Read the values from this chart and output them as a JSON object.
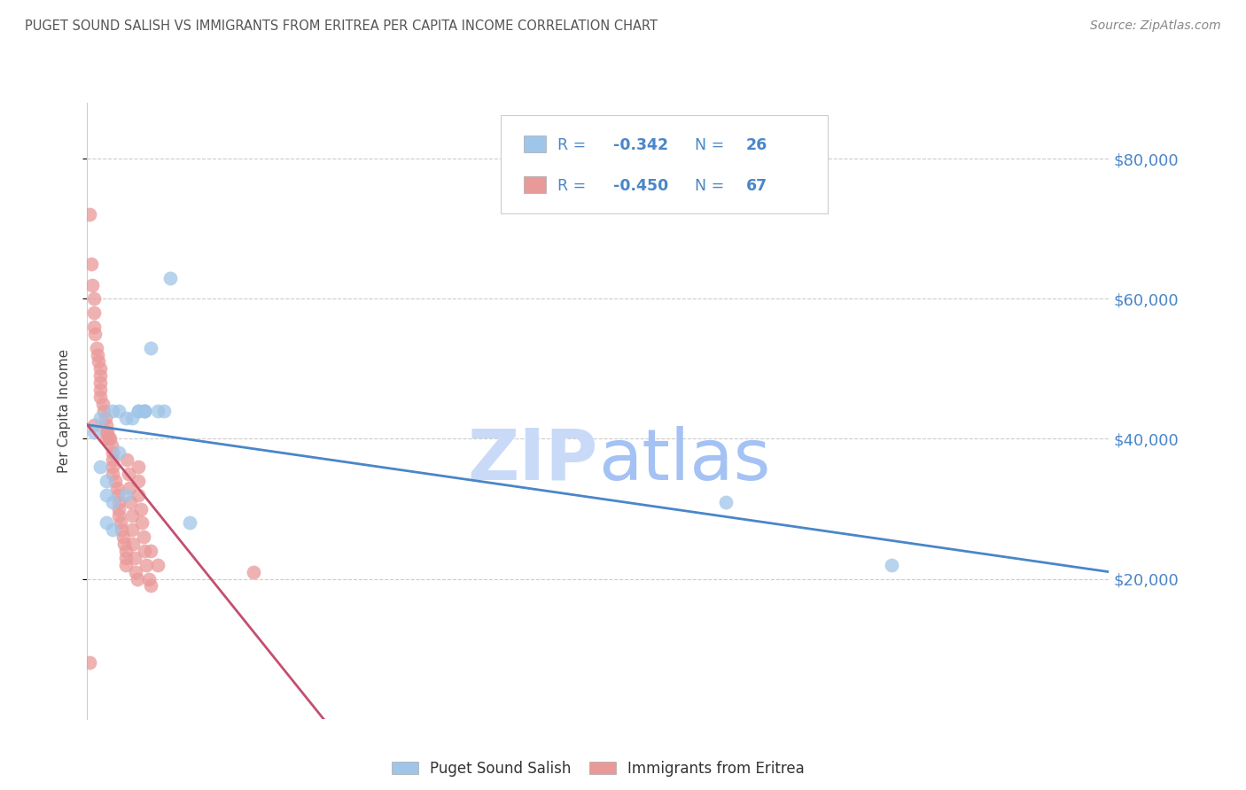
{
  "title": "PUGET SOUND SALISH VS IMMIGRANTS FROM ERITREA PER CAPITA INCOME CORRELATION CHART",
  "source": "Source: ZipAtlas.com",
  "ylabel": "Per Capita Income",
  "y_ticks": [
    20000,
    40000,
    60000,
    80000
  ],
  "y_tick_labels": [
    "$20,000",
    "$40,000",
    "$60,000",
    "$80,000"
  ],
  "xlim": [
    0.0,
    0.8
  ],
  "ylim": [
    0,
    88000
  ],
  "blue_color": "#9fc5e8",
  "pink_color": "#ea9999",
  "blue_line_color": "#4a86c8",
  "pink_line_color": "#c2506e",
  "watermark_zip_color": "#c9daf8",
  "watermark_atlas_color": "#a8c4e8",
  "bg_color": "#ffffff",
  "grid_color": "#cccccc",
  "label_blue": "Puget Sound Salish",
  "label_pink": "Immigrants from Eritrea",
  "legend_text_color": "#4a86c8",
  "axis_label_color": "#4a86c8",
  "title_color": "#555555",
  "source_color": "#888888",
  "blue_scatter_x": [
    0.005,
    0.01,
    0.01,
    0.015,
    0.015,
    0.02,
    0.02,
    0.02,
    0.025,
    0.025,
    0.03,
    0.03,
    0.035,
    0.04,
    0.04,
    0.045,
    0.045,
    0.045,
    0.05,
    0.055,
    0.06,
    0.065,
    0.5,
    0.63,
    0.015,
    0.08
  ],
  "blue_scatter_y": [
    41000,
    43000,
    36000,
    34000,
    32000,
    44000,
    31000,
    27000,
    44000,
    38000,
    43000,
    32000,
    43000,
    44000,
    44000,
    44000,
    44000,
    44000,
    53000,
    44000,
    44000,
    63000,
    31000,
    22000,
    28000,
    28000
  ],
  "pink_scatter_x": [
    0.002,
    0.003,
    0.004,
    0.005,
    0.005,
    0.005,
    0.005,
    0.006,
    0.007,
    0.008,
    0.009,
    0.01,
    0.01,
    0.01,
    0.01,
    0.01,
    0.012,
    0.013,
    0.014,
    0.015,
    0.015,
    0.015,
    0.016,
    0.017,
    0.018,
    0.019,
    0.02,
    0.02,
    0.02,
    0.02,
    0.022,
    0.023,
    0.024,
    0.025,
    0.025,
    0.025,
    0.026,
    0.027,
    0.028,
    0.029,
    0.03,
    0.03,
    0.03,
    0.031,
    0.032,
    0.033,
    0.034,
    0.035,
    0.035,
    0.036,
    0.037,
    0.038,
    0.039,
    0.04,
    0.04,
    0.04,
    0.042,
    0.043,
    0.044,
    0.045,
    0.046,
    0.048,
    0.05,
    0.05,
    0.055,
    0.13,
    0.002
  ],
  "pink_scatter_y": [
    72000,
    65000,
    62000,
    60000,
    58000,
    56000,
    42000,
    55000,
    53000,
    52000,
    51000,
    50000,
    49000,
    48000,
    47000,
    46000,
    45000,
    44000,
    43000,
    42000,
    41000,
    40000,
    41000,
    40000,
    40000,
    39000,
    38000,
    37000,
    36000,
    35000,
    34000,
    33000,
    32000,
    31000,
    30000,
    29000,
    28000,
    27000,
    26000,
    25000,
    24000,
    23000,
    22000,
    37000,
    35000,
    33000,
    31000,
    29000,
    27000,
    25000,
    23000,
    21000,
    20000,
    36000,
    34000,
    32000,
    30000,
    28000,
    26000,
    24000,
    22000,
    20000,
    19000,
    24000,
    22000,
    21000,
    8000
  ],
  "blue_line_x0": 0.0,
  "blue_line_x1": 0.8,
  "blue_line_y0": 42000,
  "blue_line_y1": 21000,
  "pink_line_x0": 0.0,
  "pink_line_x1": 0.185,
  "pink_line_y0": 42000,
  "pink_line_y1": 0
}
